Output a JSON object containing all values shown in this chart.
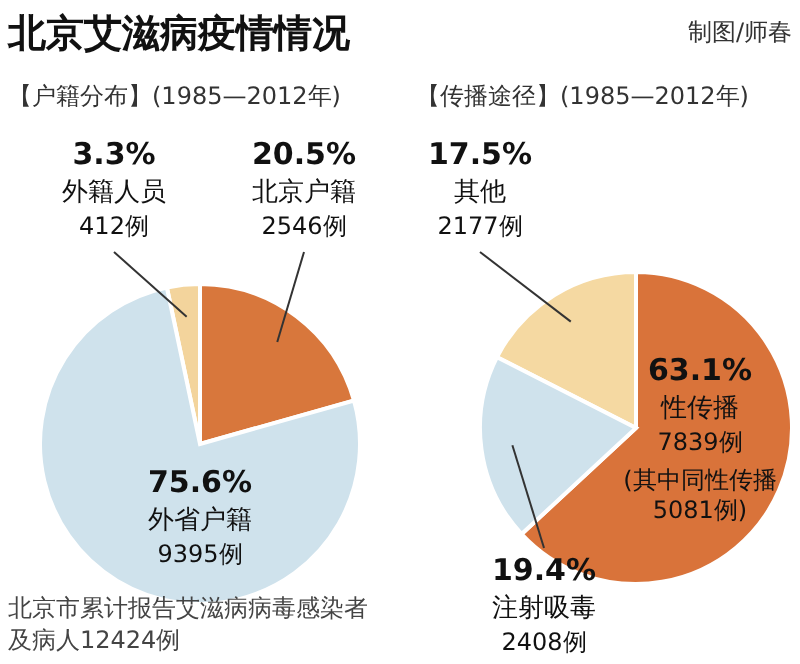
{
  "chart_data": [
    {
      "type": "pie",
      "title": "北京艾滋病疫情情况",
      "subtitle": "【户籍分布】(1985—2012年)",
      "categories": [
        "外籍人员",
        "北京户籍",
        "外省户籍"
      ],
      "values": [
        3.3,
        20.5,
        75.6
      ],
      "value_labels": [
        "3.3%",
        "20.5%",
        "75.6%"
      ],
      "colors": [
        "#f3d49c",
        "#d8773c",
        "#cfe2ec"
      ],
      "annotations": [
        {
          "text": "412例",
          "x": "外籍人员"
        },
        {
          "text": "2546例",
          "x": "北京户籍"
        },
        {
          "text": "9395例",
          "x": "外省户籍"
        },
        "制图/师春",
        "北京市累计报告艾滋病病毒感染者及病人12424例"
      ]
    },
    {
      "type": "pie",
      "subtitle": "【传播途径】(1985—2012年)",
      "categories": [
        "其他",
        "性传播",
        "注射吸毒"
      ],
      "values": [
        17.5,
        63.1,
        19.4
      ],
      "value_labels": [
        "17.5%",
        "63.1%",
        "19.4%"
      ],
      "colors": [
        "#f5d9a2",
        "#d9733a",
        "#cfe2ec"
      ],
      "annotations": [
        {
          "text": "2177例",
          "x": "其他"
        },
        {
          "text": "7839例",
          "x": "性传播"
        },
        {
          "text": "(其中同性传播5081例)",
          "x": "性传播"
        },
        {
          "text": "2408例",
          "x": "注射吸毒"
        }
      ]
    }
  ]
}
